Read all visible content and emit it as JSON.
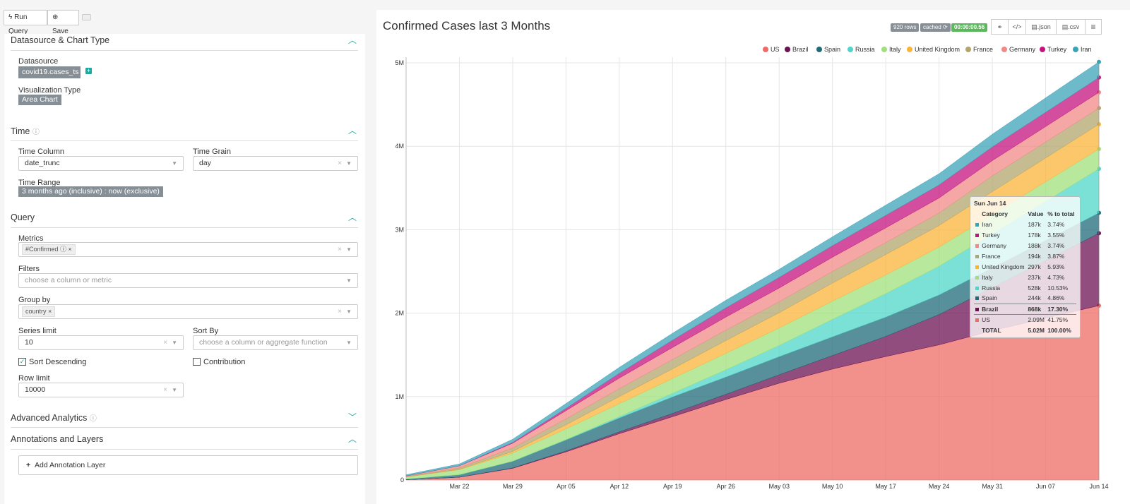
{
  "toolbar": {
    "run_query": "Run Query",
    "save": "Save",
    "run_icon": "bolt-icon",
    "save_icon": "plus-circle-icon",
    "keyboard_icon": "keyboard-icon"
  },
  "sections": {
    "datasource": {
      "title": "Datasource & Chart Type",
      "datasource_label": "Datasource",
      "datasource_value": "covid19.cases_ts",
      "viz_label": "Visualization Type",
      "viz_value": "Area Chart"
    },
    "time": {
      "title": "Time",
      "time_column_label": "Time Column",
      "time_column_value": "date_trunc",
      "time_grain_label": "Time Grain",
      "time_grain_value": "day",
      "time_range_label": "Time Range",
      "time_range_value": "3 months ago (inclusive) : now (exclusive)"
    },
    "query": {
      "title": "Query",
      "metrics_label": "Metrics",
      "metrics_value": "#Confirmed",
      "filters_label": "Filters",
      "filters_placeholder": "choose a column or metric",
      "groupby_label": "Group by",
      "groupby_value": "country",
      "series_limit_label": "Series limit",
      "series_limit_value": "10",
      "sort_by_label": "Sort By",
      "sort_by_placeholder": "choose a column or aggregate function",
      "sort_desc_label": "Sort Descending",
      "sort_desc_checked": true,
      "contribution_label": "Contribution",
      "contribution_checked": false,
      "row_limit_label": "Row limit",
      "row_limit_value": "10000"
    },
    "advanced": {
      "title": "Advanced Analytics"
    },
    "annotations": {
      "title": "Annotations and Layers",
      "add_label": "Add Annotation Layer"
    }
  },
  "header": {
    "title": "Confirmed Cases last 3 Months",
    "rows_badge": "920 rows",
    "cached_badge": "cached",
    "timer": "00:00:00.56",
    "json_label": ".json",
    "csv_label": ".csv",
    "link_icon": "link-icon",
    "embed_icon": "code-icon",
    "menu_icon": "hamburger-icon"
  },
  "chart_data": {
    "type": "area",
    "stacked": true,
    "title": "Confirmed Cases last 3 Months",
    "x": [
      "2020-03-15",
      "2020-03-22",
      "2020-03-29",
      "2020-04-05",
      "2020-04-12",
      "2020-04-19",
      "2020-04-26",
      "2020-05-03",
      "2020-05-10",
      "2020-05-17",
      "2020-05-24",
      "2020-05-31",
      "2020-06-07",
      "2020-06-14"
    ],
    "x_ticks": [
      "Mar 22",
      "Mar 29",
      "Apr 05",
      "Apr 12",
      "Apr 19",
      "Apr 26",
      "May 03",
      "May 10",
      "May 17",
      "May 24",
      "May 31",
      "Jun 07",
      "Jun 14"
    ],
    "y_ticks": [
      "0",
      "1M",
      "2M",
      "3M",
      "4M",
      "5M"
    ],
    "ylim": [
      0,
      5000000
    ],
    "grid": true,
    "legend_position": "top-right",
    "series": [
      {
        "name": "US",
        "color": "#ee6b66",
        "values": [
          3500,
          33000,
          140000,
          337000,
          555000,
          759000,
          965000,
          1160000,
          1330000,
          1480000,
          1620000,
          1790000,
          1940000,
          2090000
        ]
      },
      {
        "name": "Brazil",
        "color": "#6b1151",
        "values": [
          200,
          1500,
          4300,
          11000,
          22000,
          39000,
          62000,
          101000,
          162000,
          241000,
          363000,
          514000,
          691000,
          868000
        ]
      },
      {
        "name": "Spain",
        "color": "#1f6b78",
        "values": [
          7800,
          29000,
          80000,
          131000,
          166000,
          198000,
          207000,
          217000,
          224000,
          231000,
          235000,
          239000,
          241000,
          244000
        ]
      },
      {
        "name": "Russia",
        "color": "#4fd6c8",
        "values": [
          60,
          370,
          1500,
          5400,
          15800,
          42900,
          87000,
          134000,
          209000,
          281000,
          344000,
          405000,
          467000,
          528000
        ]
      },
      {
        "name": "Italy",
        "color": "#9fe07a",
        "values": [
          24700,
          59000,
          97700,
          128900,
          156000,
          178000,
          197000,
          210000,
          219000,
          225000,
          229000,
          233000,
          235000,
          237000
        ]
      },
      {
        "name": "United Kingdom",
        "color": "#fbb43a",
        "values": [
          1100,
          5700,
          19500,
          48000,
          85000,
          115000,
          153000,
          183000,
          216000,
          244000,
          259000,
          275000,
          285000,
          297000
        ]
      },
      {
        "name": "France",
        "color": "#b3a56e",
        "values": [
          5400,
          16000,
          40000,
          70000,
          95000,
          112000,
          125000,
          131000,
          139000,
          143000,
          150000,
          189000,
          191000,
          194000
        ]
      },
      {
        "name": "Germany",
        "color": "#f08a86",
        "values": [
          5800,
          24900,
          58000,
          100000,
          127000,
          145000,
          157000,
          165000,
          171000,
          177000,
          180000,
          183000,
          186000,
          188000
        ]
      },
      {
        "name": "Turkey",
        "color": "#c5137f",
        "values": [
          5,
          1200,
          9200,
          27000,
          57000,
          87000,
          110000,
          127000,
          138000,
          150000,
          156000,
          164000,
          171000,
          178000
        ]
      },
      {
        "name": "Iran",
        "color": "#3ba3b8",
        "values": [
          13900,
          21600,
          38000,
          58000,
          71000,
          83000,
          91000,
          97000,
          107000,
          122000,
          135000,
          152000,
          173000,
          187000
        ]
      }
    ],
    "tooltip": {
      "date": "Sun Jun 14",
      "headers": [
        "Category",
        "Value",
        "% to total"
      ],
      "rows": [
        {
          "name": "Iran",
          "value": "187k",
          "pct": "3.74%",
          "color": "#3ba3b8"
        },
        {
          "name": "Turkey",
          "value": "178k",
          "pct": "3.55%",
          "color": "#c5137f"
        },
        {
          "name": "Germany",
          "value": "188k",
          "pct": "3.74%",
          "color": "#f08a86"
        },
        {
          "name": "France",
          "value": "194k",
          "pct": "3.87%",
          "color": "#b3a56e"
        },
        {
          "name": "United Kingdom",
          "value": "297k",
          "pct": "5.93%",
          "color": "#fbb43a"
        },
        {
          "name": "Italy",
          "value": "237k",
          "pct": "4.73%",
          "color": "#9fe07a"
        },
        {
          "name": "Russia",
          "value": "528k",
          "pct": "10.53%",
          "color": "#4fd6c8"
        },
        {
          "name": "Spain",
          "value": "244k",
          "pct": "4.86%",
          "color": "#1f6b78"
        },
        {
          "name": "Brazil",
          "value": "868k",
          "pct": "17.30%",
          "color": "#6b1151",
          "highlight": true
        },
        {
          "name": "US",
          "value": "2.09M",
          "pct": "41.75%",
          "color": "#ee6b66"
        }
      ],
      "total": {
        "name": "TOTAL",
        "value": "5.02M",
        "pct": "100.00%"
      }
    }
  }
}
